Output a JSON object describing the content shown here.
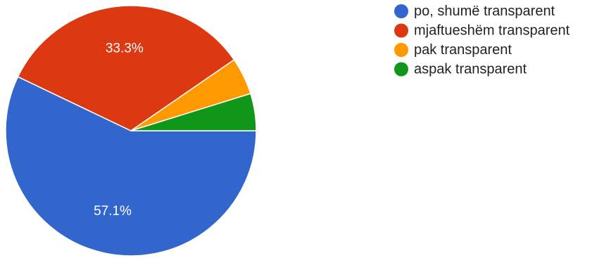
{
  "chart_data": {
    "type": "pie",
    "title": "",
    "legend_position": "right",
    "slices": [
      {
        "label": "po, shumë transparent",
        "value": 57.1,
        "display": "57.1%",
        "color": "#3366cc"
      },
      {
        "label": "mjaftueshëm transparent",
        "value": 33.3,
        "display": "33.3%",
        "color": "#dc3912"
      },
      {
        "label": "pak transparent",
        "value": 4.8,
        "display": "",
        "color": "#ff9900"
      },
      {
        "label": "aspak transparent",
        "value": 4.8,
        "display": "",
        "color": "#109618"
      }
    ]
  }
}
